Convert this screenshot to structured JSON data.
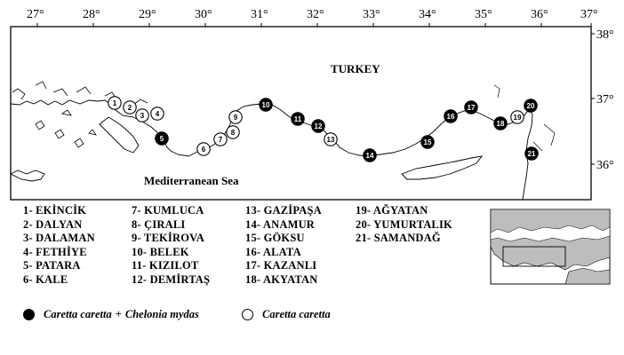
{
  "map": {
    "lon_labels": [
      "27",
      "28",
      "29",
      "30",
      "31",
      "32",
      "33",
      "34",
      "35",
      "36",
      "37"
    ],
    "lat_labels": [
      "38",
      "37",
      "36"
    ],
    "degree_symbol": "°",
    "country_label": "TURKEY",
    "sea_label": "Mediterranean Sea",
    "sites": [
      {
        "n": "1",
        "filled": false
      },
      {
        "n": "2",
        "filled": false
      },
      {
        "n": "3",
        "filled": false
      },
      {
        "n": "4",
        "filled": false
      },
      {
        "n": "5",
        "filled": true
      },
      {
        "n": "6",
        "filled": false
      },
      {
        "n": "7",
        "filled": false
      },
      {
        "n": "8",
        "filled": false
      },
      {
        "n": "9",
        "filled": false
      },
      {
        "n": "10",
        "filled": true
      },
      {
        "n": "11",
        "filled": true
      },
      {
        "n": "12",
        "filled": true
      },
      {
        "n": "13",
        "filled": false
      },
      {
        "n": "14",
        "filled": true
      },
      {
        "n": "15",
        "filled": true
      },
      {
        "n": "16",
        "filled": true
      },
      {
        "n": "17",
        "filled": true
      },
      {
        "n": "18",
        "filled": true
      },
      {
        "n": "19",
        "filled": false
      },
      {
        "n": "20",
        "filled": true
      },
      {
        "n": "21",
        "filled": true
      }
    ]
  },
  "legend": {
    "col1": [
      "1- EKİNCİK",
      "2- DALYAN",
      "3- DALAMAN",
      "4- FETHİYE",
      "5- PATARA",
      "6- KALE"
    ],
    "col2": [
      "7- KUMLUCA",
      "8- ÇIRALI",
      "9- TEKİROVA",
      "10- BELEK",
      "11- KIZILOT",
      "12- DEMİRTAŞ"
    ],
    "col3": [
      "13- GAZİPAŞA",
      "14- ANAMUR",
      "15- GÖKSU",
      "16- ALATA",
      "17- KAZANLI",
      "18- AKYATAN"
    ],
    "col4": [
      "19- AĞYATAN",
      "20- YUMURTALIK",
      "21- SAMANDAĞ"
    ]
  },
  "key": {
    "filled_species_1": "Caretta caretta",
    "filled_plus": "+",
    "filled_species_2": "Chelonia mydas",
    "open_species": "Caretta caretta"
  },
  "colors": {
    "ink": "#000000",
    "land_inset": "#bdbdbd",
    "paper": "#ffffff"
  }
}
